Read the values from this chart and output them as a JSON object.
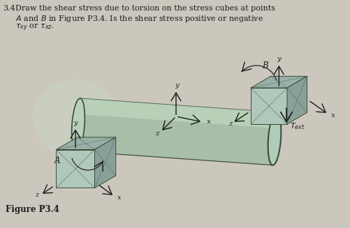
{
  "bg_color": "#cdc8be",
  "shaft_body_color": "#aabfaa",
  "shaft_edge_color": "#4a5e4a",
  "shaft_highlight": "#c8dcc8",
  "shaft_shadow": "#90a890",
  "ellipse_face_color": "#b0ccb8",
  "ellipse_edge_color": "#405040",
  "cube_front": "#b0c8bc",
  "cube_top": "#98b0a8",
  "cube_right": "#88a098",
  "cube_edge": "#3a4a3a",
  "arrow_color": "#1a1a1a",
  "text_color": "#1a1a1a",
  "figure_label": "Figure P3.4",
  "header_line1": "3.4  Draw the shear stress due to torsion on the stress cubes at points",
  "header_line2": "     A and B in Figure P3.4. Is the shear stress positive or negative",
  "header_line3": "     τ",
  "shadow_color": "#b8c4b4"
}
